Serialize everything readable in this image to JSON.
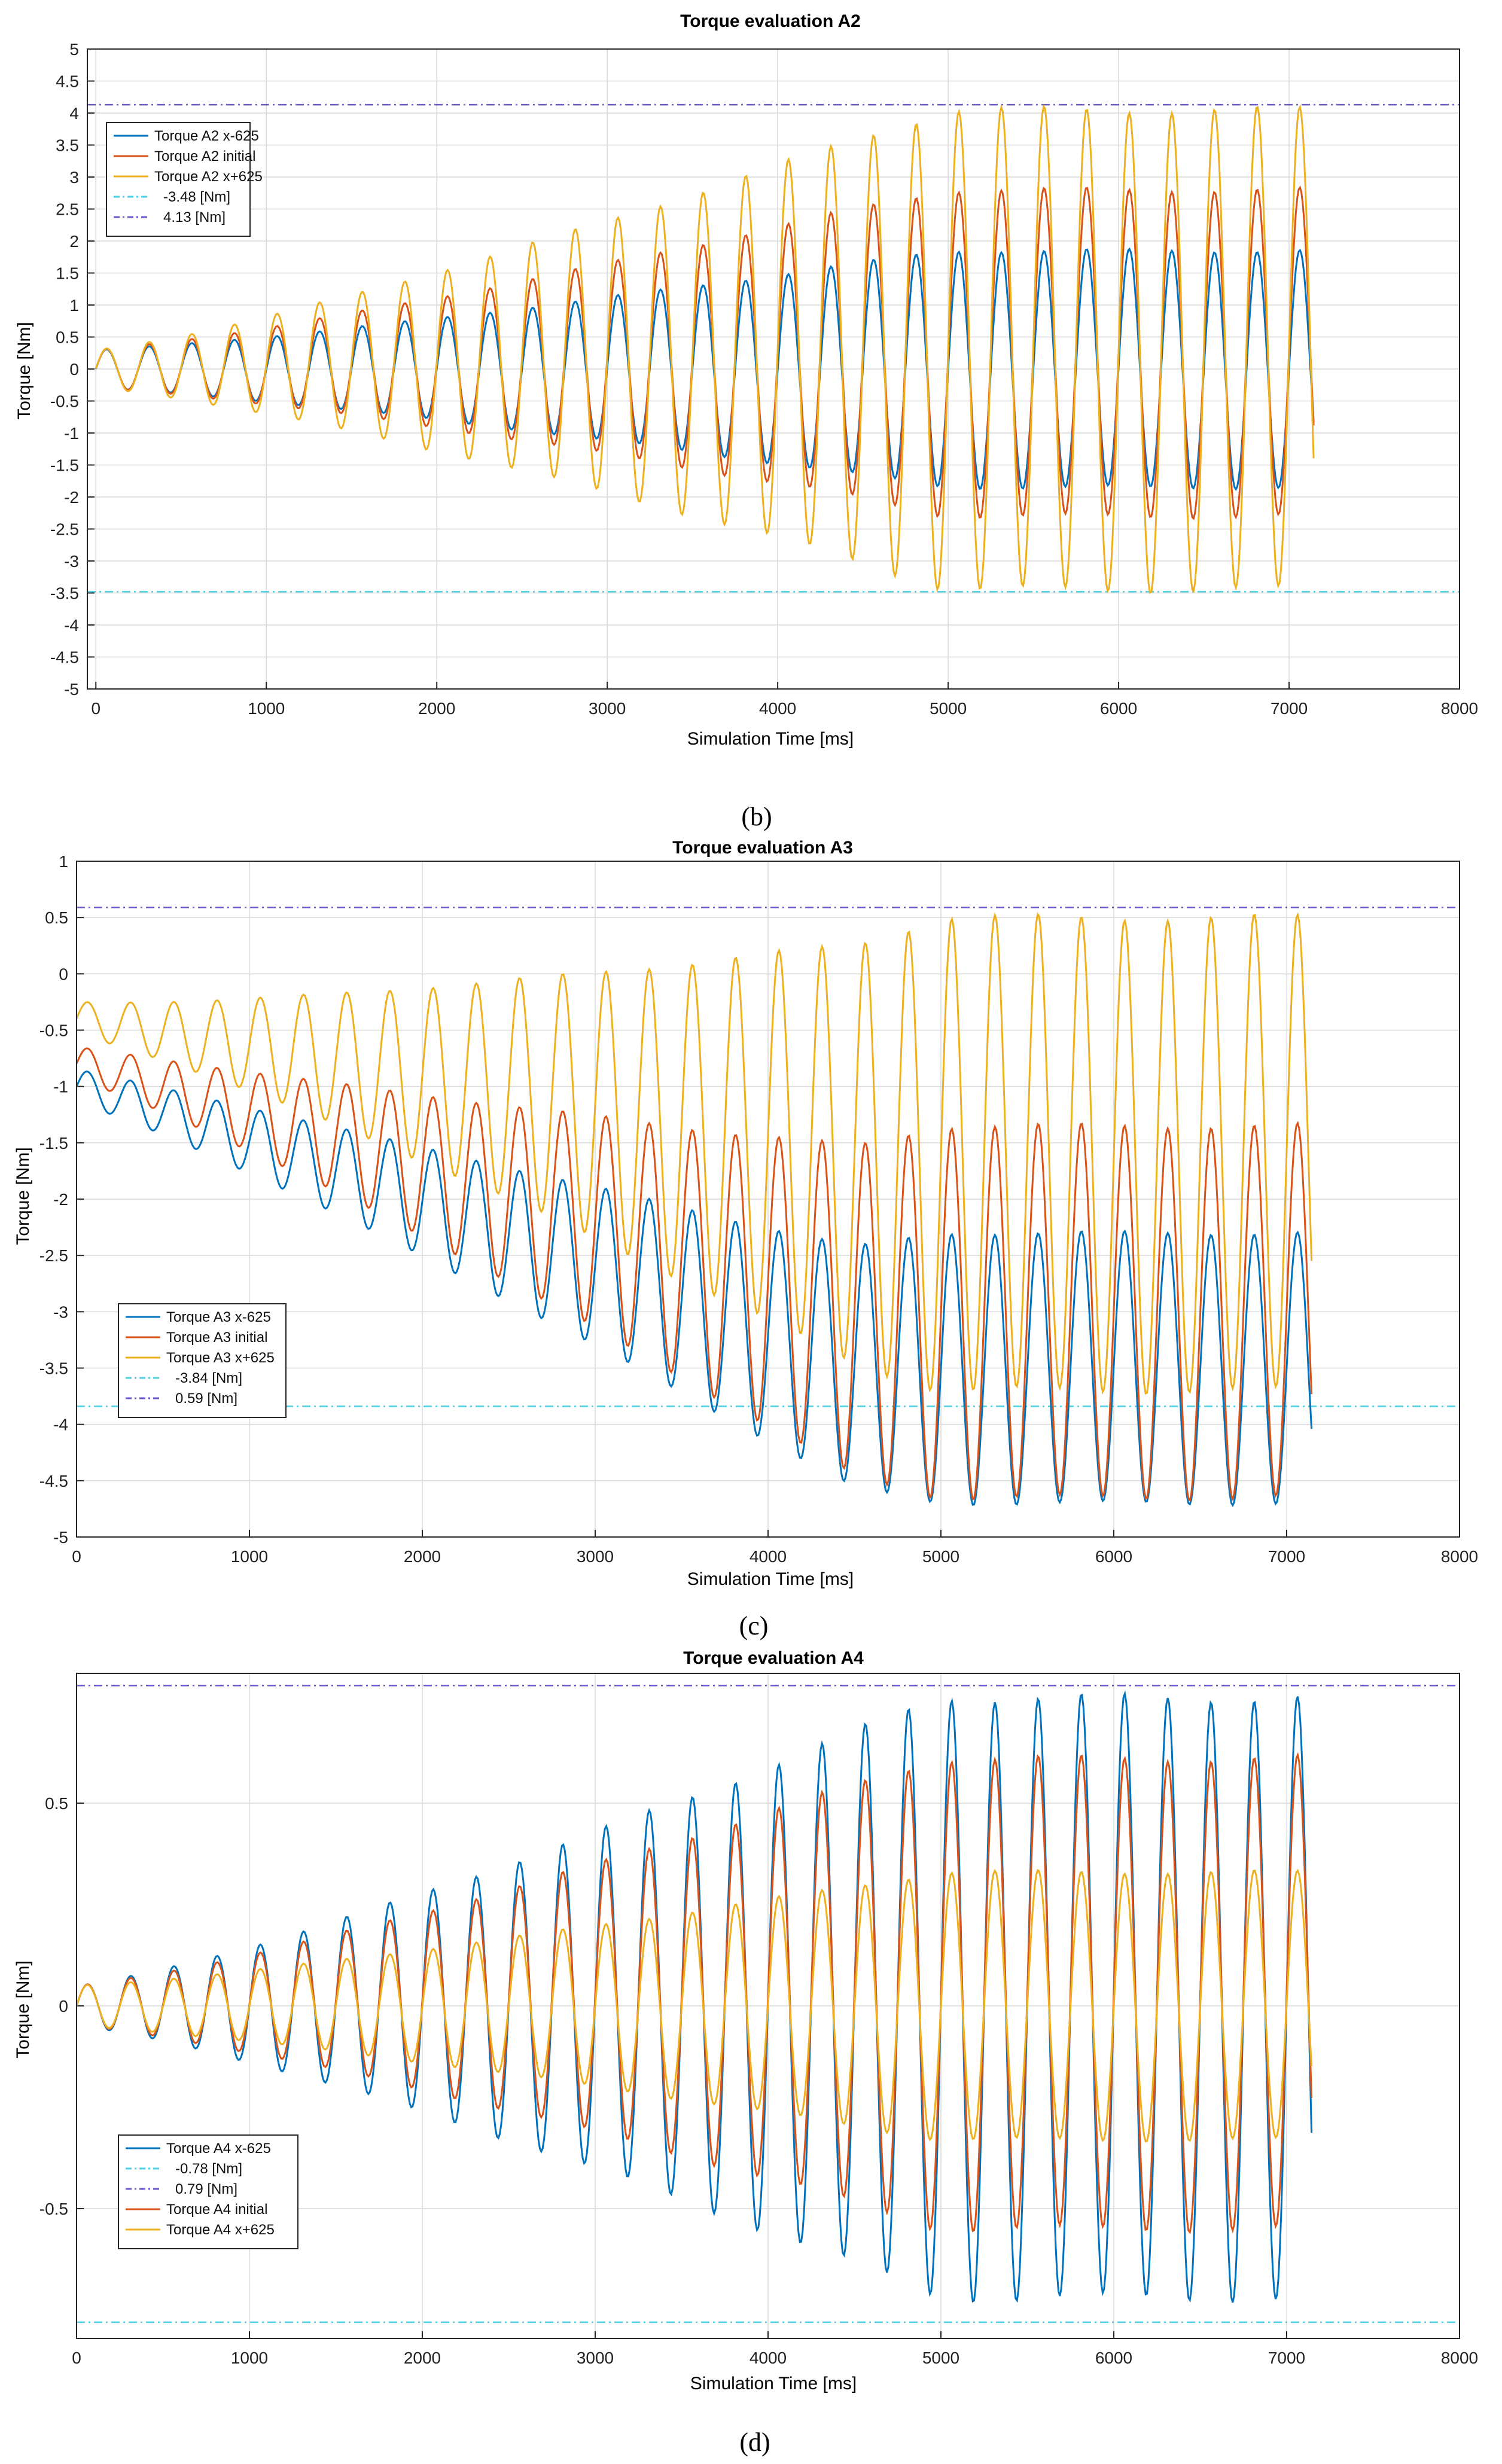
{
  "colors": {
    "blue": "#0072bd",
    "orange": "#d95319",
    "yellow": "#edb120",
    "cyan_limit": "#4dd0e1",
    "purple_limit": "#6a5acd",
    "grid": "#d9d9d9"
  },
  "captions": [
    "(b)",
    "(c)",
    "(d)"
  ],
  "chart_data": [
    {
      "type": "line",
      "title": "Torque evaluation A2",
      "xlabel": "Simulation Time [ms]",
      "ylabel": "Torque [Nm]",
      "xlim": [
        -50,
        8000
      ],
      "ylim": [
        -5,
        5
      ],
      "xticks": [
        0,
        1000,
        2000,
        3000,
        4000,
        5000,
        6000,
        7000,
        8000
      ],
      "xtick_labels": [
        "0",
        "1000",
        "2000",
        "3000",
        "4000",
        "5000",
        "6000",
        "7000",
        "8000"
      ],
      "yticks": [
        5,
        4.5,
        4,
        3.5,
        3,
        2.5,
        2,
        1.5,
        1,
        0.5,
        0,
        -0.5,
        -1,
        -1.5,
        -2,
        -2.5,
        -3,
        -3.5,
        -4,
        -4.5,
        -5
      ],
      "ytick_labels": [
        "5",
        "4.5",
        "4",
        "3.5",
        "3",
        "2.5",
        "2",
        "1.5",
        "1",
        "0.5",
        "0",
        "-0.5",
        "-1",
        "-1.5",
        "-2",
        "-2.5",
        "-3",
        "-3.5",
        "-4",
        "-4.5",
        "-5"
      ],
      "grid": true,
      "legend_position": "top-left",
      "oscillation": {
        "x_end": 7150,
        "period_ms": 250,
        "amp_start": 0.3,
        "amp_grow_end_ms": 5000
      },
      "series": [
        {
          "name": "Torque A2 x-625",
          "color_key": "blue",
          "offset_start": 0,
          "offset_end": 0,
          "amp_end": 1.85
        },
        {
          "name": "Torque A2 initial",
          "color_key": "orange",
          "offset_start": 0,
          "offset_end": 0.25,
          "amp_end": 2.55
        },
        {
          "name": "Torque A2 x+625",
          "color_key": "yellow",
          "offset_start": 0,
          "offset_end": 0.3,
          "amp_end": 3.75
        }
      ],
      "limits": [
        {
          "name": "-3.48 [Nm]",
          "value": -3.48,
          "color_key": "cyan_limit"
        },
        {
          "name": "4.13 [Nm]",
          "value": 4.13,
          "color_key": "purple_limit"
        }
      ],
      "legend_order": [
        "Torque A2 x-625",
        "Torque A2 initial",
        "Torque A2 x+625",
        "-3.48 [Nm]",
        "4.13 [Nm]"
      ]
    },
    {
      "type": "line",
      "title": "Torque evaluation A3",
      "xlabel": "Simulation Time [ms]",
      "ylabel": "Torque [Nm]",
      "xlim": [
        0,
        8000
      ],
      "ylim": [
        -5,
        1
      ],
      "xticks": [
        0,
        1000,
        2000,
        3000,
        4000,
        5000,
        6000,
        7000,
        8000
      ],
      "xtick_labels": [
        "0",
        "1000",
        "2000",
        "3000",
        "4000",
        "5000",
        "6000",
        "7000",
        "8000"
      ],
      "yticks": [
        1,
        0.5,
        0,
        -0.5,
        -1,
        -1.5,
        -2,
        -2.5,
        -3,
        -3.5,
        -4,
        -4.5,
        -5
      ],
      "ytick_labels": [
        "1",
        "0.5",
        "0",
        "-0.5",
        "-1",
        "-1.5",
        "-2",
        "-2.5",
        "-3",
        "-3.5",
        "-4",
        "-4.5",
        "-5"
      ],
      "grid": true,
      "legend_position": "bottom-left",
      "oscillation": {
        "x_end": 7150,
        "period_ms": 250,
        "amp_start": 0.15,
        "amp_grow_end_ms": 5000
      },
      "series": [
        {
          "name": "Torque A3 x-625",
          "color_key": "blue",
          "offset_start": -1.0,
          "offset_end": -3.5,
          "amp_end": 1.2
        },
        {
          "name": "Torque A3 initial",
          "color_key": "orange",
          "offset_start": -0.8,
          "offset_end": -3.0,
          "amp_end": 1.65
        },
        {
          "name": "Torque A3 x+625",
          "color_key": "yellow",
          "offset_start": -0.4,
          "offset_end": -1.6,
          "amp_end": 2.1
        }
      ],
      "limits": [
        {
          "name": "-3.84 [Nm]",
          "value": -3.84,
          "color_key": "cyan_limit"
        },
        {
          "name": "0.59 [Nm]",
          "value": 0.59,
          "color_key": "purple_limit"
        }
      ],
      "legend_order": [
        "Torque A3 x-625",
        "Torque A3 initial",
        "Torque A3 x+625",
        "-3.84 [Nm]",
        "0.59 [Nm]"
      ]
    },
    {
      "type": "line",
      "title": "Torque evaluation A4",
      "xlabel": "Simulation Time [ms]",
      "ylabel": "Torque [Nm]",
      "xlim": [
        0,
        8000
      ],
      "ylim": [
        -0.82,
        0.82
      ],
      "xticks": [
        0,
        1000,
        2000,
        3000,
        4000,
        5000,
        6000,
        7000,
        8000
      ],
      "xtick_labels": [
        "0",
        "1000",
        "2000",
        "3000",
        "4000",
        "5000",
        "6000",
        "7000",
        "8000"
      ],
      "yticks": [
        0.5,
        0,
        -0.5
      ],
      "ytick_labels": [
        "0.5",
        "0",
        "-0.5"
      ],
      "grid": true,
      "legend_position": "bottom-left",
      "oscillation": {
        "x_end": 7150,
        "period_ms": 250,
        "amp_start": 0.05,
        "amp_grow_end_ms": 5000
      },
      "series": [
        {
          "name": "Torque A4 x-625",
          "color_key": "blue",
          "offset_start": 0,
          "offset_end": 0.02,
          "amp_end": 0.74
        },
        {
          "name": "Torque A4 initial",
          "color_key": "orange",
          "offset_start": 0,
          "offset_end": 0.03,
          "amp_end": 0.58
        },
        {
          "name": "Torque A4 x+625",
          "color_key": "yellow",
          "offset_start": 0,
          "offset_end": 0.0,
          "amp_end": 0.33
        }
      ],
      "limits": [
        {
          "name": "-0.78 [Nm]",
          "value": -0.78,
          "color_key": "cyan_limit"
        },
        {
          "name": "0.79 [Nm]",
          "value": 0.79,
          "color_key": "purple_limit"
        }
      ],
      "legend_order": [
        "Torque A4 x-625",
        "-0.78 [Nm]",
        "0.79 [Nm]",
        "Torque A4 initial",
        "Torque A4 x+625"
      ]
    }
  ]
}
